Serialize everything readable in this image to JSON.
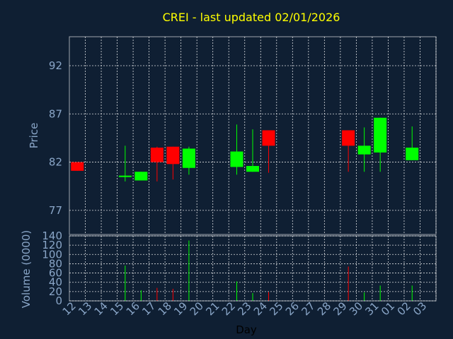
{
  "chart_data": [
    {
      "type": "candlestick",
      "title": "CREI - last updated 02/01/2026",
      "ylabel": "Price",
      "ylim": [
        74.5,
        95
      ],
      "yticks": [
        77,
        82,
        87,
        92
      ],
      "grid": true,
      "x_tick_labels": [
        "12",
        "13",
        "14",
        "15",
        "16",
        "17",
        "18",
        "19",
        "20",
        "21",
        "22",
        "23",
        "24",
        "25",
        "26",
        "27",
        "28",
        "29",
        "30",
        "31",
        "01",
        "02",
        "03"
      ],
      "candles": [
        {
          "day": "12",
          "open": 82.0,
          "close": 81.1,
          "high": 82.0,
          "low": 81.1,
          "direction": "down"
        },
        {
          "day": "15",
          "open": 80.6,
          "close": 80.6,
          "high": 83.7,
          "low": 80.0,
          "direction": "up"
        },
        {
          "day": "16",
          "open": 80.1,
          "close": 81.0,
          "high": 81.0,
          "low": 80.1,
          "direction": "up"
        },
        {
          "day": "17",
          "open": 83.5,
          "close": 82.0,
          "high": 83.6,
          "low": 80.0,
          "direction": "down"
        },
        {
          "day": "18",
          "open": 83.6,
          "close": 81.8,
          "high": 83.6,
          "low": 80.2,
          "direction": "down"
        },
        {
          "day": "19",
          "open": 81.4,
          "close": 83.4,
          "high": 83.6,
          "low": 80.7,
          "direction": "up"
        },
        {
          "day": "22",
          "open": 81.5,
          "close": 83.1,
          "high": 85.9,
          "low": 80.7,
          "direction": "up"
        },
        {
          "day": "23",
          "open": 81.0,
          "close": 81.6,
          "high": 85.4,
          "low": 81.0,
          "direction": "up"
        },
        {
          "day": "24",
          "open": 85.3,
          "close": 83.7,
          "high": 85.3,
          "low": 80.9,
          "direction": "down"
        },
        {
          "day": "29",
          "open": 85.3,
          "close": 83.7,
          "high": 85.3,
          "low": 81.0,
          "direction": "down"
        },
        {
          "day": "30",
          "open": 82.8,
          "close": 83.7,
          "high": 85.6,
          "low": 81.0,
          "direction": "up"
        },
        {
          "day": "31",
          "open": 83.0,
          "close": 86.6,
          "high": 86.6,
          "low": 81.0,
          "direction": "up"
        },
        {
          "day": "02",
          "open": 82.2,
          "close": 83.5,
          "high": 85.7,
          "low": 82.2,
          "direction": "up"
        }
      ],
      "colors": {
        "up": "#00ff00",
        "down": "#ff0000"
      }
    },
    {
      "type": "bar",
      "ylabel": "Volume (0000)",
      "xlabel": "Day",
      "ylim": [
        0,
        140
      ],
      "yticks": [
        0,
        20,
        40,
        60,
        80,
        100,
        120,
        140
      ],
      "grid": true,
      "bars": [
        {
          "day": "15",
          "value": 76,
          "direction": "up"
        },
        {
          "day": "16",
          "value": 23,
          "direction": "up"
        },
        {
          "day": "17",
          "value": 28,
          "direction": "down"
        },
        {
          "day": "18",
          "value": 26,
          "direction": "down"
        },
        {
          "day": "19",
          "value": 130,
          "direction": "up"
        },
        {
          "day": "22",
          "value": 42,
          "direction": "up"
        },
        {
          "day": "23",
          "value": 17,
          "direction": "up"
        },
        {
          "day": "24",
          "value": 19,
          "direction": "down"
        },
        {
          "day": "29",
          "value": 74,
          "direction": "down"
        },
        {
          "day": "30",
          "value": 18,
          "direction": "up"
        },
        {
          "day": "31",
          "value": 33,
          "direction": "up"
        },
        {
          "day": "02",
          "value": 33,
          "direction": "up"
        }
      ],
      "colors": {
        "up": "#00ff00",
        "down": "#ff0000"
      }
    }
  ]
}
